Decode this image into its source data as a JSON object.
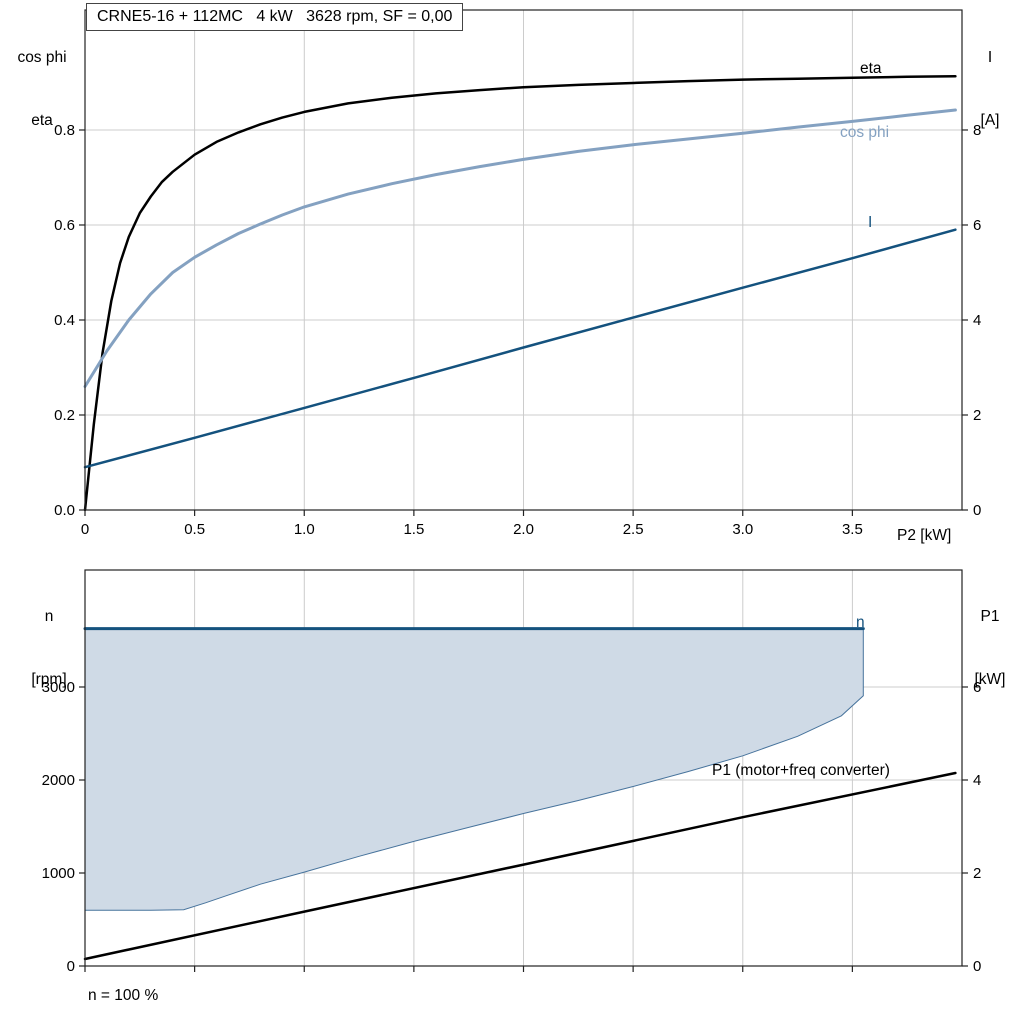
{
  "colors": {
    "eta": "#000000",
    "cos_phi": "#84a1c1",
    "current": "#14527e",
    "n_line": "#14527e",
    "area_fill": "#cfdae6",
    "area_stroke": "#47739c",
    "p1": "#000000",
    "grid": "#cccccc",
    "border": "#222222"
  },
  "axis_corner_labels": {
    "top_left_1": "cos phi",
    "top_left_2": "eta",
    "top_right_1": "I",
    "top_right_2": "[A]",
    "bottom_left_1": "n",
    "bottom_left_2": "[rpm]",
    "bottom_right_1": "P1",
    "bottom_right_2": "[kW]",
    "x_axis": "P2 [kW]"
  },
  "curve_labels": {
    "eta": "eta",
    "cos_phi": "cos phi",
    "current": "I",
    "n": "n",
    "p1": "P1 (motor+freq converter)",
    "n_100": "n = 100 %"
  },
  "chart_data": [
    {
      "type": "line",
      "title": "CRNE5-16 + 112MC   4 kW   3628 rpm, SF = 0,00",
      "x_label": "P2 [kW]",
      "x_range": [
        0,
        4.0
      ],
      "show_x_labels": true,
      "x_ticks": [
        [
          0,
          "0"
        ],
        [
          0.5,
          "0.5"
        ],
        [
          1.0,
          "1.0"
        ],
        [
          1.5,
          "1.5"
        ],
        [
          2.0,
          "2.0"
        ],
        [
          2.5,
          "2.5"
        ],
        [
          3.0,
          "3.0"
        ],
        [
          3.5,
          "3.5"
        ]
      ],
      "left_axis": {
        "label": "cos phi / eta",
        "range": [
          0,
          1.0526
        ],
        "ticks": [
          [
            0.0,
            "0.0"
          ],
          [
            0.2,
            "0.2"
          ],
          [
            0.4,
            "0.4"
          ],
          [
            0.6,
            "0.6"
          ],
          [
            0.8,
            "0.8"
          ]
        ]
      },
      "right_axis": {
        "label": "I [A]",
        "range": [
          0,
          10.526
        ],
        "ticks": [
          [
            0,
            "0"
          ],
          [
            2,
            "2"
          ],
          [
            4,
            "4"
          ],
          [
            6,
            "6"
          ],
          [
            8,
            "8"
          ]
        ]
      },
      "series": [
        {
          "name": "eta",
          "type": "line",
          "axis": "left",
          "color": "#000000",
          "width": 2.5,
          "points": [
            [
              0,
              0
            ],
            [
              0.04,
              0.18
            ],
            [
              0.08,
              0.33
            ],
            [
              0.12,
              0.44
            ],
            [
              0.16,
              0.52
            ],
            [
              0.2,
              0.575
            ],
            [
              0.25,
              0.625
            ],
            [
              0.3,
              0.66
            ],
            [
              0.35,
              0.69
            ],
            [
              0.4,
              0.712
            ],
            [
              0.5,
              0.748
            ],
            [
              0.6,
              0.775
            ],
            [
              0.7,
              0.795
            ],
            [
              0.8,
              0.812
            ],
            [
              0.9,
              0.826
            ],
            [
              1.0,
              0.838
            ],
            [
              1.2,
              0.856
            ],
            [
              1.4,
              0.868
            ],
            [
              1.6,
              0.877
            ],
            [
              1.8,
              0.884
            ],
            [
              2.0,
              0.89
            ],
            [
              2.25,
              0.895
            ],
            [
              2.5,
              0.899
            ],
            [
              2.75,
              0.903
            ],
            [
              3.0,
              0.906
            ],
            [
              3.25,
              0.908
            ],
            [
              3.5,
              0.91
            ],
            [
              3.75,
              0.912
            ],
            [
              3.97,
              0.913
            ]
          ]
        },
        {
          "name": "cos phi",
          "type": "line",
          "axis": "left",
          "color": "#84a1c1",
          "width": 3,
          "points": [
            [
              0,
              0.26
            ],
            [
              0.1,
              0.335
            ],
            [
              0.2,
              0.4
            ],
            [
              0.3,
              0.455
            ],
            [
              0.4,
              0.5
            ],
            [
              0.5,
              0.532
            ],
            [
              0.6,
              0.558
            ],
            [
              0.7,
              0.582
            ],
            [
              0.8,
              0.602
            ],
            [
              0.9,
              0.621
            ],
            [
              1.0,
              0.638
            ],
            [
              1.2,
              0.665
            ],
            [
              1.4,
              0.687
            ],
            [
              1.6,
              0.706
            ],
            [
              1.8,
              0.723
            ],
            [
              2.0,
              0.738
            ],
            [
              2.25,
              0.755
            ],
            [
              2.5,
              0.769
            ],
            [
              2.75,
              0.781
            ],
            [
              3.0,
              0.793
            ],
            [
              3.25,
              0.806
            ],
            [
              3.5,
              0.818
            ],
            [
              3.75,
              0.831
            ],
            [
              3.97,
              0.842
            ]
          ]
        },
        {
          "name": "I",
          "type": "line",
          "axis": "right",
          "color": "#14527e",
          "width": 2.5,
          "points": [
            [
              0,
              0.9
            ],
            [
              0.5,
              1.52
            ],
            [
              1.0,
              2.15
            ],
            [
              1.5,
              2.78
            ],
            [
              2.0,
              3.42
            ],
            [
              2.5,
              4.05
            ],
            [
              3.0,
              4.68
            ],
            [
              3.5,
              5.3
            ],
            [
              3.97,
              5.9
            ]
          ]
        }
      ]
    },
    {
      "type": "line",
      "title": "",
      "x_label": "",
      "x_range": [
        0,
        4.0
      ],
      "show_x_labels": false,
      "x_ticks": [
        [
          0,
          ""
        ],
        [
          0.5,
          ""
        ],
        [
          1.0,
          ""
        ],
        [
          1.5,
          ""
        ],
        [
          2.0,
          ""
        ],
        [
          2.5,
          ""
        ],
        [
          3.0,
          ""
        ],
        [
          3.5,
          ""
        ]
      ],
      "left_axis": {
        "label": "n [rpm]",
        "range": [
          0,
          4258
        ],
        "ticks": [
          [
            0,
            "0"
          ],
          [
            1000,
            "1000"
          ],
          [
            2000,
            "2000"
          ],
          [
            3000,
            "3000"
          ]
        ]
      },
      "right_axis": {
        "label": "P1 [kW]",
        "range": [
          0,
          8.516
        ],
        "ticks": [
          [
            0,
            "0"
          ],
          [
            2,
            "2"
          ],
          [
            4,
            "4"
          ],
          [
            6,
            "6"
          ]
        ]
      },
      "annotations": {
        "rated_speed_rpm": 3628,
        "speed_note": "n = 100 %"
      },
      "series": [
        {
          "name": "speed range area",
          "type": "area",
          "axis": "left",
          "fill": "#cfdae6",
          "stroke": "#47739c",
          "points": [
            [
              0,
              3628
            ],
            [
              3.55,
              3628
            ],
            [
              3.55,
              2905
            ],
            [
              3.45,
              2690
            ],
            [
              3.25,
              2470
            ],
            [
              3.0,
              2260
            ],
            [
              2.75,
              2090
            ],
            [
              2.5,
              1930
            ],
            [
              2.25,
              1780
            ],
            [
              2.0,
              1640
            ],
            [
              1.75,
              1490
            ],
            [
              1.5,
              1340
            ],
            [
              1.25,
              1180
            ],
            [
              1.0,
              1010
            ],
            [
              0.8,
              880
            ],
            [
              0.65,
              760
            ],
            [
              0.55,
              680
            ],
            [
              0.45,
              605
            ],
            [
              0.3,
              600
            ],
            [
              0,
              600
            ]
          ]
        },
        {
          "name": "n",
          "type": "line",
          "axis": "left",
          "color": "#14527e",
          "width": 3,
          "points": [
            [
              0,
              3628
            ],
            [
              3.55,
              3628
            ]
          ]
        },
        {
          "name": "P1 (motor+freq converter)",
          "type": "line",
          "axis": "right",
          "color": "#000000",
          "width": 2.5,
          "points": [
            [
              0,
              0.15
            ],
            [
              1.0,
              1.17
            ],
            [
              2.0,
              2.18
            ],
            [
              3.0,
              3.2
            ],
            [
              3.97,
              4.15
            ]
          ]
        }
      ]
    }
  ]
}
